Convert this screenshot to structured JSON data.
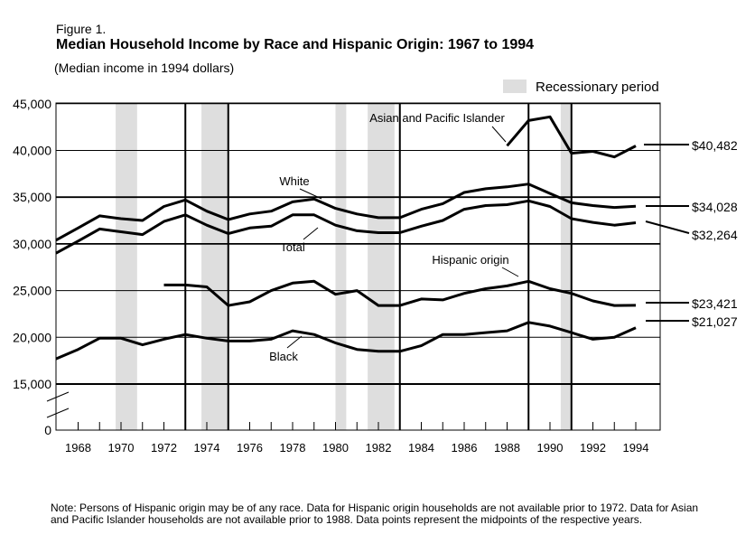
{
  "figure_label": "Figure 1.",
  "title": "Median Household Income by Race and Hispanic Origin:  1967 to 1994",
  "subtitle": "(Median income in 1994 dollars)",
  "legend": {
    "recession_label": "Recessionary period",
    "recession_color": "#dedede"
  },
  "note": "Note:  Persons of Hispanic origin may be of any race.  Data for Hispanic origin households are not available prior to 1972.  Data for Asian and Pacific Islander households are not available prior to 1988. Data points represent the midpoints of the respective years.",
  "chart_data": {
    "type": "line",
    "title": "Median Household Income by Race and Hispanic Origin:  1967 to 1994",
    "subtitle": "(Median income in 1994 dollars)",
    "xlabel": "",
    "ylabel": "",
    "xlim": [
      1967,
      1995
    ],
    "ylim": [
      0,
      45000
    ],
    "axis_break": [
      0,
      15000
    ],
    "x_ticks": [
      1968,
      1970,
      1972,
      1974,
      1976,
      1978,
      1980,
      1982,
      1984,
      1986,
      1988,
      1990,
      1992,
      1994
    ],
    "x_tick_labels": [
      "1968",
      "1970",
      "1972",
      "1974",
      "1976",
      "1978",
      "1980",
      "1982",
      "1984",
      "1986",
      "1988",
      "1990",
      "1992",
      "1994"
    ],
    "y_ticks": [
      0,
      15000,
      20000,
      25000,
      30000,
      35000,
      40000,
      45000
    ],
    "y_tick_labels": [
      "0",
      "15,000",
      "20,000",
      "25,000",
      "30,000",
      "35,000",
      "40,000",
      "45,000"
    ],
    "grid": "horizontal",
    "recessions": [
      [
        1969.75,
        1970.75
      ],
      [
        1973.75,
        1975.0
      ],
      [
        1980.0,
        1980.5
      ],
      [
        1981.5,
        1982.75
      ],
      [
        1990.5,
        1991.0
      ]
    ],
    "peak_trough_lines": [
      1973,
      1975,
      1983,
      1989,
      1991
    ],
    "series": [
      {
        "name": "Asian and Pacific Islander",
        "end_label": "$40,482",
        "x": [
          1988,
          1989,
          1990,
          1991,
          1992,
          1993,
          1994
        ],
        "values": [
          40500,
          43200,
          43600,
          39700,
          39900,
          39300,
          40482
        ]
      },
      {
        "name": "White",
        "end_label": "$34,028",
        "x": [
          1967,
          1968,
          1969,
          1970,
          1971,
          1972,
          1973,
          1974,
          1975,
          1976,
          1977,
          1978,
          1979,
          1980,
          1981,
          1982,
          1983,
          1984,
          1985,
          1986,
          1987,
          1988,
          1989,
          1990,
          1991,
          1992,
          1993,
          1994
        ],
        "values": [
          30400,
          31700,
          33000,
          32700,
          32500,
          34000,
          34700,
          33500,
          32600,
          33200,
          33500,
          34500,
          34800,
          33800,
          33200,
          32800,
          32800,
          33700,
          34300,
          35500,
          35900,
          36100,
          36400,
          35400,
          34400,
          34100,
          33900,
          34028
        ]
      },
      {
        "name": "Total",
        "end_label": "$32,264",
        "x": [
          1967,
          1968,
          1969,
          1970,
          1971,
          1972,
          1973,
          1974,
          1975,
          1976,
          1977,
          1978,
          1979,
          1980,
          1981,
          1982,
          1983,
          1984,
          1985,
          1986,
          1987,
          1988,
          1989,
          1990,
          1991,
          1992,
          1993,
          1994
        ],
        "values": [
          29000,
          30300,
          31600,
          31300,
          31000,
          32400,
          33100,
          32000,
          31100,
          31700,
          31900,
          33100,
          33100,
          32000,
          31400,
          31200,
          31200,
          31900,
          32500,
          33700,
          34100,
          34200,
          34600,
          34000,
          32700,
          32300,
          32000,
          32264
        ]
      },
      {
        "name": "Hispanic origin",
        "end_label": "$23,421",
        "x": [
          1972,
          1973,
          1974,
          1975,
          1976,
          1977,
          1978,
          1979,
          1980,
          1981,
          1982,
          1983,
          1984,
          1985,
          1986,
          1987,
          1988,
          1989,
          1990,
          1991,
          1992,
          1993,
          1994
        ],
        "values": [
          25600,
          25600,
          25400,
          23400,
          23800,
          25000,
          25800,
          26000,
          24600,
          25000,
          23400,
          23400,
          24100,
          24000,
          24700,
          25200,
          25500,
          26000,
          25200,
          24700,
          23900,
          23400,
          23421
        ]
      },
      {
        "name": "Black",
        "end_label": "$21,027",
        "x": [
          1967,
          1968,
          1969,
          1970,
          1971,
          1972,
          1973,
          1974,
          1975,
          1976,
          1977,
          1978,
          1979,
          1980,
          1981,
          1982,
          1983,
          1984,
          1985,
          1986,
          1987,
          1988,
          1989,
          1990,
          1991,
          1992,
          1993,
          1994
        ],
        "values": [
          17700,
          18700,
          19900,
          19900,
          19200,
          19800,
          20300,
          19900,
          19600,
          19600,
          19800,
          20700,
          20300,
          19400,
          18700,
          18500,
          18500,
          19100,
          20300,
          20300,
          20500,
          20700,
          21600,
          21200,
          20500,
          19800,
          20000,
          21027
        ]
      }
    ]
  }
}
